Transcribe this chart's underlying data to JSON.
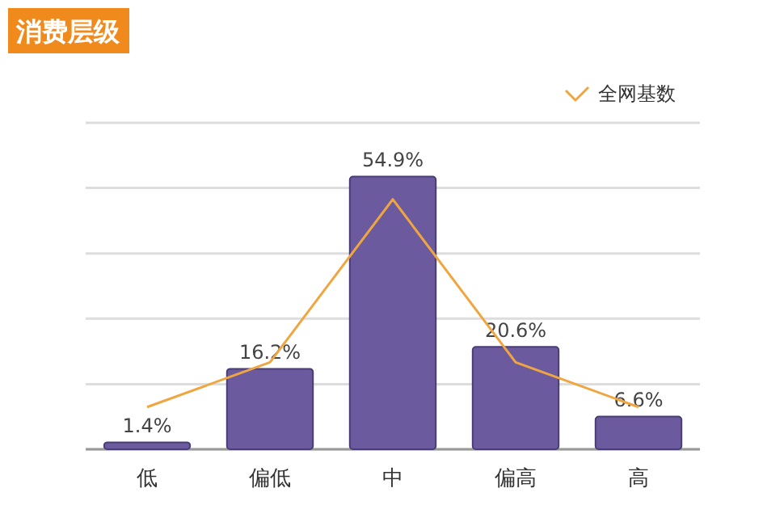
{
  "chart_data": {
    "type": "bar",
    "title": "消费层级",
    "categories": [
      "低",
      "偏低",
      "中",
      "偏高",
      "高"
    ],
    "series": [
      {
        "color": "#6b5b9e",
        "values": [
          1.4,
          16.2,
          54.9,
          20.6,
          6.6
        ],
        "value_labels": [
          "1.4%",
          "16.2%",
          "54.9%",
          "20.6%",
          "6.6%"
        ]
      },
      {
        "type": "line",
        "name": "全网基数",
        "color": "#f0a640",
        "values": [
          8.5,
          17.5,
          50.3,
          17.5,
          8.5
        ]
      }
    ],
    "ylim": [
      0,
      65.7
    ],
    "yticks": [
      {
        "value": 0,
        "label": null
      },
      {
        "value": 13.1,
        "label": null
      },
      {
        "value": 26.3,
        "label": null
      },
      {
        "value": 39.4,
        "label": null
      },
      {
        "value": 52.6,
        "label": null
      },
      {
        "value": 65.7,
        "label": null
      }
    ],
    "grid": "y",
    "legend": "top right",
    "tick_labels": "x"
  }
}
